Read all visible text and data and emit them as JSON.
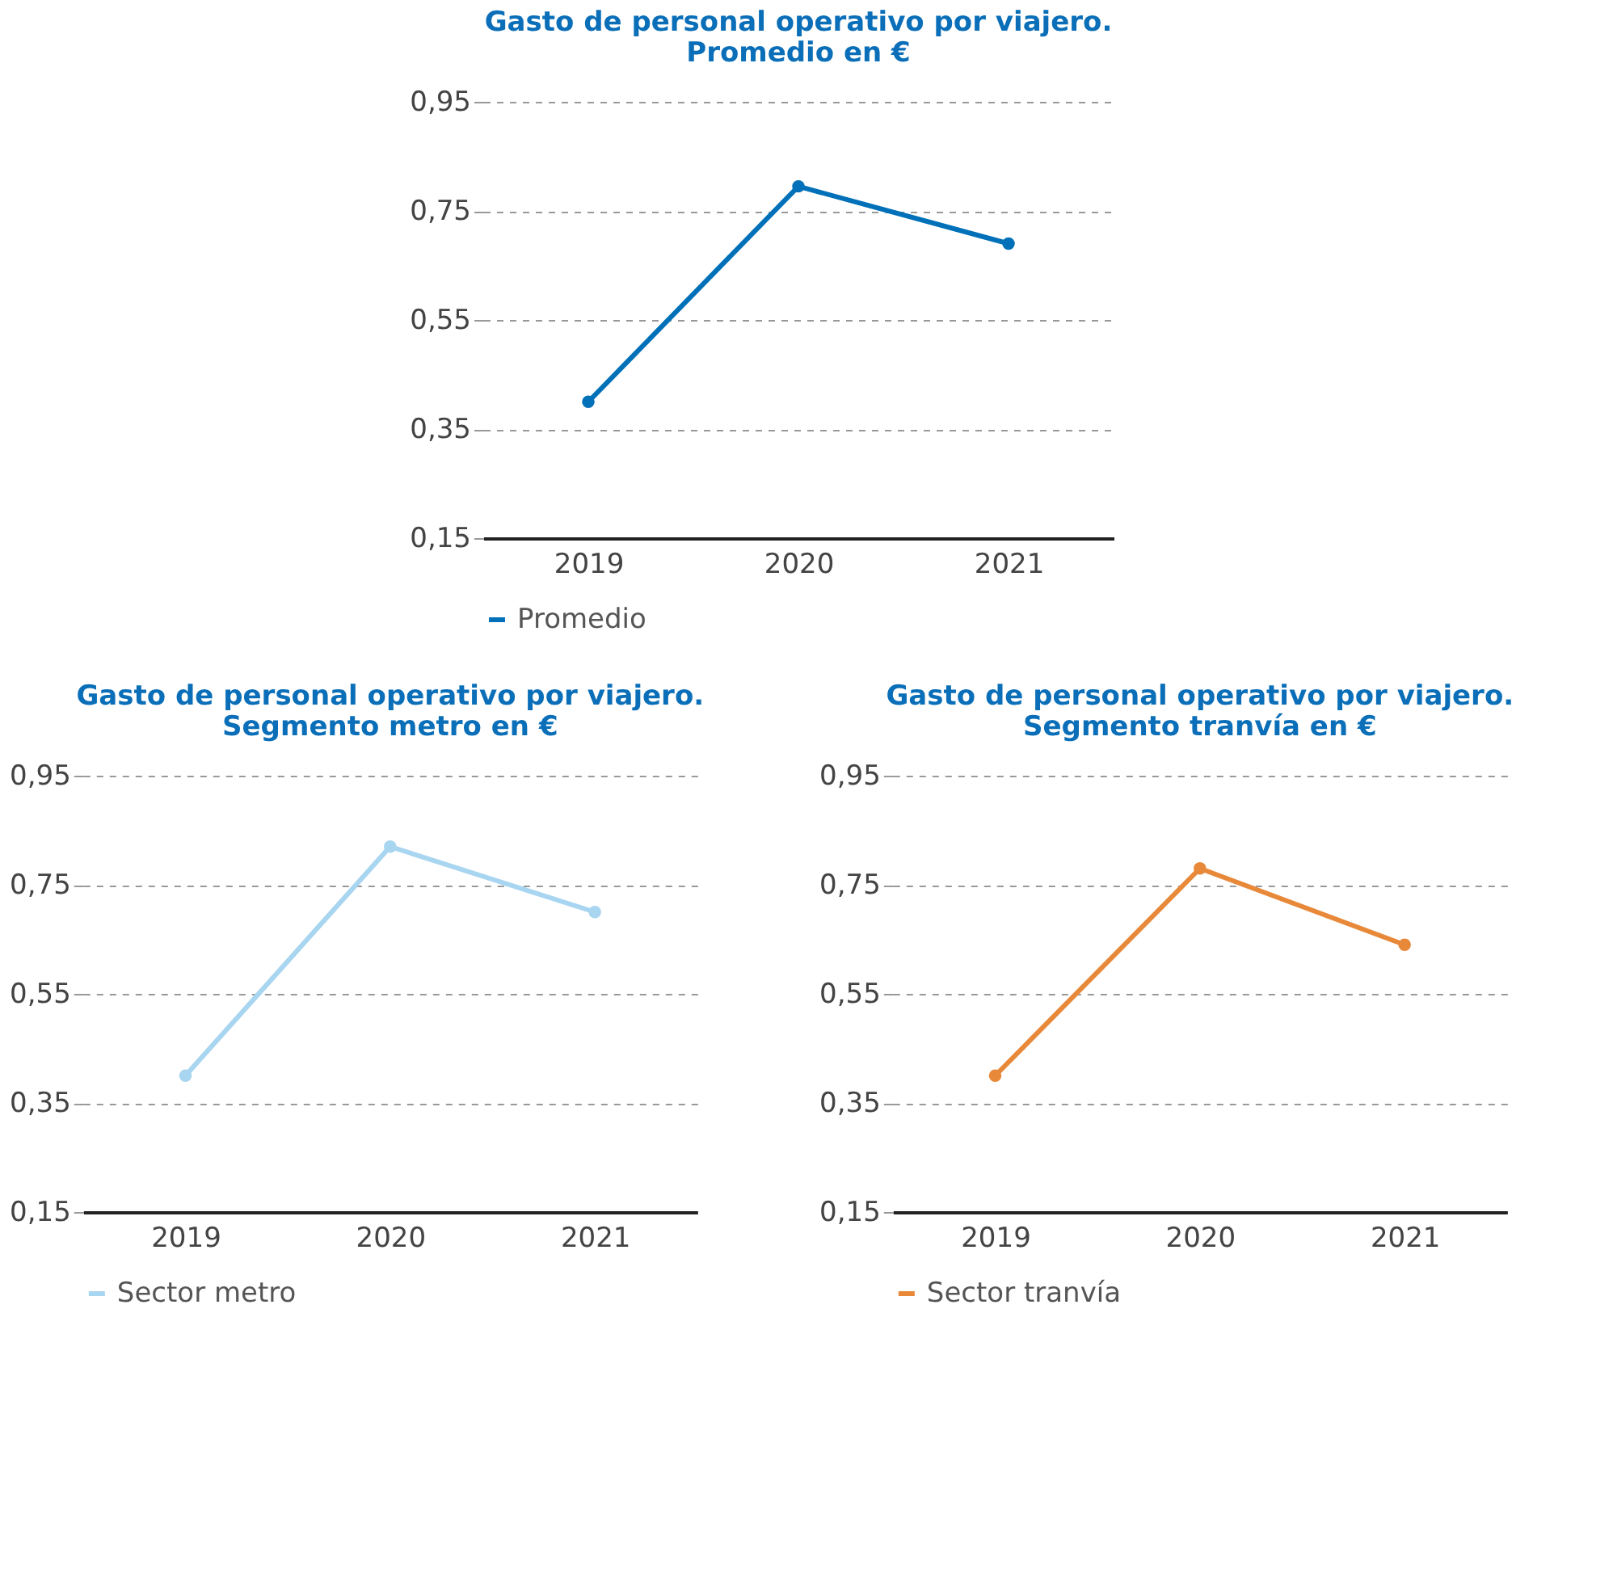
{
  "chart_data": [
    {
      "type": "line",
      "title": "Gasto de personal operativo por viajero.\nPromedio en €",
      "categories": [
        "2019",
        "2020",
        "2021"
      ],
      "series": [
        {
          "name": "Promedio",
          "color": "#0070b8",
          "values": [
            0.4,
            0.795,
            0.69
          ]
        }
      ],
      "ylim": [
        0.15,
        0.95
      ],
      "yticks": [
        {
          "value": 0.15,
          "label": "0,15"
        },
        {
          "value": 0.35,
          "label": "0,35"
        },
        {
          "value": 0.55,
          "label": "0,55"
        },
        {
          "value": 0.75,
          "label": "0,75"
        },
        {
          "value": 0.95,
          "label": "0,95"
        }
      ],
      "grid": "y",
      "legend": "bottom",
      "marker": "circle",
      "line_style": "solid"
    },
    {
      "type": "line",
      "title": "Gasto de personal operativo por viajero.\nSegmento metro en €",
      "categories": [
        "2019",
        "2020",
        "2021"
      ],
      "series": [
        {
          "name": "Sector metro",
          "color": "#a8d5f0",
          "values": [
            0.4,
            0.82,
            0.7
          ]
        }
      ],
      "ylim": [
        0.15,
        0.95
      ],
      "yticks": [
        {
          "value": 0.15,
          "label": "0,15"
        },
        {
          "value": 0.35,
          "label": "0,35"
        },
        {
          "value": 0.55,
          "label": "0,55"
        },
        {
          "value": 0.75,
          "label": "0,75"
        },
        {
          "value": 0.95,
          "label": "0,95"
        }
      ],
      "grid": "y",
      "legend": "bottom",
      "marker": "circle",
      "line_style": "solid"
    },
    {
      "type": "line",
      "title": "Gasto de personal operativo por viajero.\nSegmento tranvía en €",
      "categories": [
        "2019",
        "2020",
        "2021"
      ],
      "series": [
        {
          "name": "Sector tranvía",
          "color": "#e8893a",
          "values": [
            0.4,
            0.78,
            0.64
          ]
        }
      ],
      "ylim": [
        0.15,
        0.95
      ],
      "yticks": [
        {
          "value": 0.15,
          "label": "0,15"
        },
        {
          "value": 0.35,
          "label": "0,35"
        },
        {
          "value": 0.55,
          "label": "0,55"
        },
        {
          "value": 0.75,
          "label": "0,75"
        },
        {
          "value": 0.95,
          "label": "0,95"
        }
      ],
      "grid": "y",
      "legend": "bottom",
      "marker": "circle",
      "line_style": "solid"
    }
  ]
}
